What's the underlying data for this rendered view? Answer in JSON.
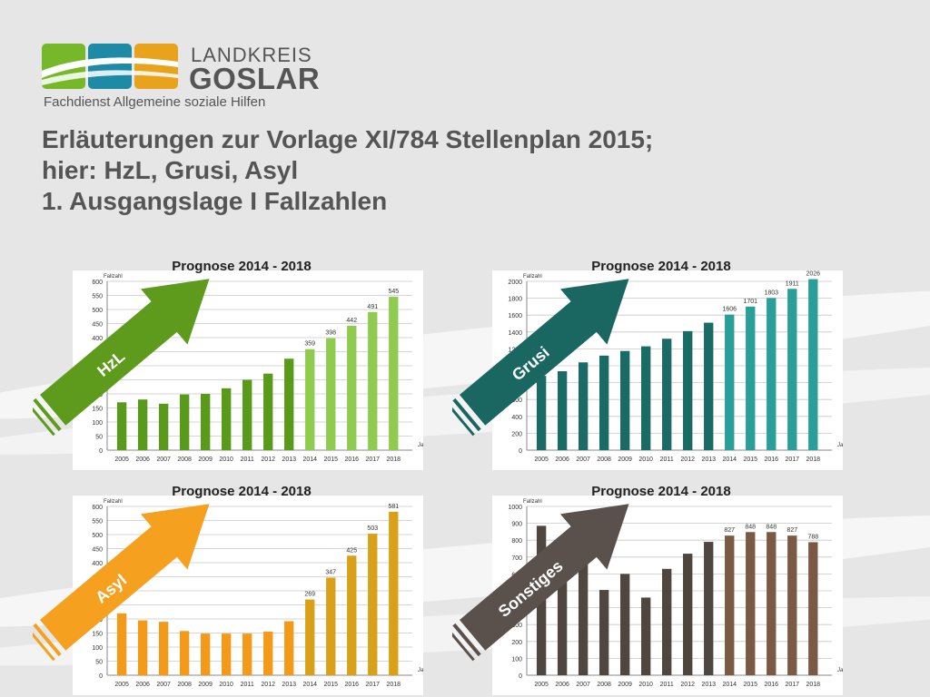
{
  "header": {
    "logo_line1": "LANDKREIS",
    "logo_line2": "GOSLAR",
    "department": "Fachdienst Allgemeine soziale Hilfen",
    "title_line1": "Erläuterungen zur Vorlage XI/784 Stellenplan 2015;",
    "title_line2": "hier: HzL, Grusi, Asyl",
    "title_line3": "1. Ausgangslage I Fallzahlen"
  },
  "colors": {
    "logo_green": "#77b82a",
    "logo_teal": "#1e8aa6",
    "logo_orange": "#e8a21c",
    "text_gray": "#555555"
  },
  "chart_data": [
    {
      "type": "bar",
      "title": "Prognose 2014 - 2018",
      "arrow_label": "HzL",
      "ylabel": "Fallzahl",
      "xlabel": "Jahr",
      "ylim": [
        0,
        600
      ],
      "yticks": [
        0,
        50,
        100,
        150,
        200,
        250,
        300,
        350,
        400,
        450,
        500,
        550,
        600
      ],
      "categories": [
        "2005",
        "2006",
        "2007",
        "2008",
        "2009",
        "2010",
        "2011",
        "2012",
        "2013",
        "2014",
        "2015",
        "2016",
        "2017",
        "2018"
      ],
      "values": [
        170,
        180,
        165,
        198,
        200,
        220,
        250,
        272,
        325,
        359,
        398,
        442,
        491,
        545
      ],
      "data_labels": [
        "",
        "",
        "",
        "",
        "",
        "",
        "",
        "",
        "",
        "359",
        "398",
        "442",
        "491",
        "545"
      ],
      "bar_color": "#5a9a1a",
      "forecast_color": "#8fcb4e",
      "arrow_color": "#5e9b1c",
      "grid": true
    },
    {
      "type": "bar",
      "title": "Prognose 2014 - 2018",
      "arrow_label": "Grusi",
      "ylabel": "Fallzahl",
      "xlabel": "Jahr",
      "ylim": [
        0,
        2000
      ],
      "yticks": [
        0,
        200,
        400,
        600,
        800,
        1000,
        1200,
        1400,
        1600,
        1800,
        2000
      ],
      "categories": [
        "2005",
        "2006",
        "2007",
        "2008",
        "2009",
        "2010",
        "2011",
        "2012",
        "2013",
        "2014",
        "2015",
        "2016",
        "2017",
        "2018"
      ],
      "values": [
        880,
        935,
        1040,
        1120,
        1175,
        1230,
        1320,
        1410,
        1510,
        1606,
        1701,
        1803,
        1911,
        2026
      ],
      "data_labels": [
        "",
        "",
        "",
        "",
        "",
        "",
        "",
        "",
        "",
        "1606",
        "1701",
        "1803",
        "1911",
        "2026"
      ],
      "bar_color": "#1a6a66",
      "forecast_color": "#2a9e98",
      "arrow_color": "#1a6762",
      "grid": true
    },
    {
      "type": "bar",
      "title": "Prognose 2014 - 2018",
      "arrow_label": "Asyl",
      "ylabel": "Fallzahl",
      "xlabel": "Jahr",
      "ylim": [
        0,
        600
      ],
      "yticks": [
        0,
        50,
        100,
        150,
        200,
        250,
        300,
        350,
        400,
        450,
        500,
        550,
        600
      ],
      "categories": [
        "2005",
        "2006",
        "2007",
        "2008",
        "2009",
        "2010",
        "2011",
        "2012",
        "2013",
        "2014",
        "2015",
        "2016",
        "2017",
        "2018"
      ],
      "values": [
        220,
        195,
        190,
        157,
        148,
        148,
        148,
        155,
        192,
        269,
        347,
        425,
        503,
        581
      ],
      "data_labels": [
        "",
        "",
        "",
        "",
        "",
        "",
        "",
        "",
        "",
        "269",
        "347",
        "425",
        "503",
        "581"
      ],
      "bar_color": "#f39a1a",
      "forecast_color": "#d9a01a",
      "arrow_color": "#f5a01e",
      "grid": true
    },
    {
      "type": "bar",
      "title": "Prognose 2014 - 2018",
      "arrow_label": "Sonstiges",
      "ylabel": "Fallzahl",
      "xlabel": "Jahr",
      "ylim": [
        0,
        1000
      ],
      "yticks": [
        0,
        100,
        200,
        300,
        400,
        500,
        600,
        700,
        800,
        900,
        1000
      ],
      "categories": [
        "2005",
        "2006",
        "2007",
        "2008",
        "2009",
        "2010",
        "2011",
        "2012",
        "2013",
        "2014",
        "2015",
        "2016",
        "2017",
        "2018"
      ],
      "values": [
        885,
        800,
        690,
        505,
        600,
        460,
        630,
        720,
        790,
        827,
        848,
        848,
        827,
        788
      ],
      "data_labels": [
        "",
        "",
        "",
        "",
        "",
        "",
        "",
        "",
        "",
        "827",
        "848",
        "848",
        "827",
        "788"
      ],
      "bar_color": "#4f4640",
      "forecast_color": "#7a5a44",
      "arrow_color": "#5a514d",
      "grid": true
    }
  ]
}
